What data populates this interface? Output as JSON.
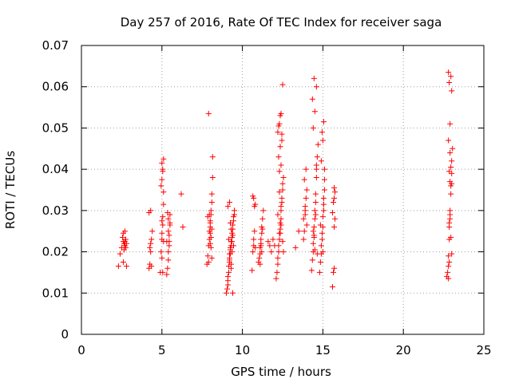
{
  "chart_data": {
    "type": "scatter",
    "title": "Day 257 of 2016, Rate Of TEC Index for receiver saga",
    "xlabel": "GPS time / hours",
    "ylabel": "ROTI / TECUs",
    "xlim": [
      0,
      25
    ],
    "ylim": [
      0,
      0.07
    ],
    "xticks": [
      0,
      5,
      10,
      15,
      20,
      25
    ],
    "xtick_labels": [
      "0",
      "5",
      "10",
      "15",
      "20",
      "25"
    ],
    "yticks": [
      0,
      0.01,
      0.02,
      0.03,
      0.04,
      0.05,
      0.06,
      0.07
    ],
    "ytick_labels": [
      "0",
      "0.01",
      "0.02",
      "0.03",
      "0.04",
      "0.05",
      "0.06",
      "0.07"
    ],
    "grid": true,
    "marker": "plus",
    "color": "#ff0000",
    "series": [
      {
        "name": "ROTI",
        "x": [
          2.3,
          2.4,
          2.5,
          2.55,
          2.6,
          2.6,
          2.65,
          2.65,
          2.7,
          2.7,
          2.75,
          2.75,
          2.8,
          2.8,
          2.6,
          2.7,
          4.2,
          4.25,
          4.3,
          4.3,
          4.35,
          4.4,
          4.3,
          4.2,
          4.35,
          4.25,
          4.9,
          4.95,
          5.0,
          5.0,
          5.05,
          5.05,
          5.1,
          5.1,
          5.0,
          5.05,
          5.0,
          5.1,
          4.95,
          5.05,
          5.0,
          5.1,
          5.05,
          5.0,
          5.3,
          5.35,
          5.4,
          5.4,
          5.45,
          5.45,
          5.5,
          5.5,
          5.35,
          5.4,
          5.45,
          5.5,
          5.3,
          5.4,
          6.2,
          6.3,
          7.8,
          7.85,
          7.9,
          7.95,
          7.95,
          8.0,
          8.0,
          8.05,
          8.05,
          8.1,
          8.1,
          8.15,
          8.15,
          7.9,
          8.0,
          8.1,
          8.05,
          7.85,
          8.0,
          7.95,
          8.1,
          8.0,
          7.9,
          8.05,
          9.0,
          9.05,
          9.1,
          9.1,
          9.15,
          9.15,
          9.2,
          9.2,
          9.25,
          9.25,
          9.3,
          9.3,
          9.35,
          9.35,
          9.4,
          9.4,
          9.45,
          9.45,
          9.5,
          9.5,
          9.1,
          9.2,
          9.3,
          9.4,
          9.15,
          9.25,
          9.35,
          9.2,
          9.3,
          9.1,
          9.4,
          9.25,
          9.35,
          9.45,
          9.2,
          9.3,
          10.6,
          10.65,
          10.7,
          10.7,
          10.75,
          10.75,
          10.8,
          10.7,
          10.65,
          10.8,
          11.0,
          11.05,
          11.1,
          11.1,
          11.15,
          11.15,
          11.2,
          11.2,
          11.25,
          11.3,
          11.1,
          11.2,
          11.15,
          11.25,
          11.6,
          11.7,
          11.8,
          11.9,
          12.0,
          12.1,
          12.15,
          12.2,
          12.2,
          12.25,
          12.25,
          12.3,
          12.3,
          12.35,
          12.35,
          12.4,
          12.4,
          12.45,
          12.45,
          12.5,
          12.5,
          12.55,
          12.3,
          12.4,
          12.25,
          12.35,
          12.45,
          12.2,
          12.3,
          12.4,
          12.5,
          12.35,
          12.25,
          12.45,
          12.3,
          12.4,
          12.5,
          12.55,
          12.35,
          12.2,
          12.4,
          13.3,
          13.5,
          13.8,
          13.85,
          13.9,
          13.9,
          13.95,
          14.0,
          13.85,
          13.95,
          13.9,
          13.8,
          14.0,
          14.3,
          14.35,
          14.4,
          14.4,
          14.45,
          14.45,
          14.5,
          14.5,
          14.55,
          14.55,
          14.6,
          14.6,
          14.65,
          14.7,
          14.4,
          14.5,
          14.35,
          14.6,
          14.45,
          14.55,
          14.4,
          14.5,
          14.65,
          14.6,
          14.45,
          14.8,
          14.85,
          14.9,
          14.9,
          14.95,
          14.95,
          15.0,
          15.0,
          15.05,
          15.05,
          15.1,
          15.1,
          14.9,
          15.0,
          15.05,
          14.95,
          15.1,
          15.0,
          14.85,
          15.05,
          15.6,
          15.65,
          15.7,
          15.7,
          15.75,
          15.6,
          15.65,
          15.7,
          15.75,
          15.7,
          22.7,
          22.75,
          22.8,
          22.8,
          22.85,
          22.85,
          22.9,
          22.9,
          22.95,
          22.95,
          23.0,
          23.0,
          23.05,
          22.8,
          22.9,
          23.0,
          22.85,
          22.95,
          22.8,
          22.9,
          22.85,
          23.0,
          22.95,
          22.9,
          22.8,
          22.85,
          22.95,
          23.0,
          22.9,
          22.85
        ],
        "y": [
          0.0165,
          0.0195,
          0.021,
          0.0235,
          0.0245,
          0.0225,
          0.022,
          0.0205,
          0.0215,
          0.0225,
          0.023,
          0.021,
          0.022,
          0.0165,
          0.0175,
          0.025,
          0.016,
          0.017,
          0.02,
          0.022,
          0.023,
          0.025,
          0.03,
          0.0295,
          0.0165,
          0.021,
          0.015,
          0.02,
          0.023,
          0.0245,
          0.0265,
          0.0285,
          0.0315,
          0.0345,
          0.0375,
          0.04,
          0.0415,
          0.0425,
          0.036,
          0.0395,
          0.0185,
          0.0225,
          0.015,
          0.0275,
          0.0145,
          0.016,
          0.018,
          0.02,
          0.0225,
          0.024,
          0.027,
          0.029,
          0.0295,
          0.025,
          0.0215,
          0.0265,
          0.0225,
          0.028,
          0.034,
          0.026,
          0.017,
          0.019,
          0.0215,
          0.023,
          0.025,
          0.026,
          0.0275,
          0.029,
          0.03,
          0.032,
          0.034,
          0.038,
          0.043,
          0.0535,
          0.0245,
          0.0185,
          0.021,
          0.0285,
          0.027,
          0.029,
          0.0255,
          0.022,
          0.0175,
          0.0235,
          0.01,
          0.011,
          0.012,
          0.014,
          0.015,
          0.0165,
          0.0175,
          0.0185,
          0.0195,
          0.0205,
          0.0215,
          0.0225,
          0.0235,
          0.0245,
          0.0255,
          0.0265,
          0.0275,
          0.0285,
          0.029,
          0.03,
          0.031,
          0.032,
          0.0255,
          0.024,
          0.023,
          0.021,
          0.02,
          0.018,
          0.016,
          0.013,
          0.01,
          0.027,
          0.0225,
          0.0215,
          0.0195,
          0.017,
          0.0155,
          0.02,
          0.0215,
          0.023,
          0.025,
          0.031,
          0.0315,
          0.033,
          0.0335,
          0.021,
          0.0175,
          0.0185,
          0.0195,
          0.021,
          0.022,
          0.023,
          0.0245,
          0.026,
          0.028,
          0.03,
          0.017,
          0.02,
          0.0215,
          0.0255,
          0.0225,
          0.0215,
          0.02,
          0.023,
          0.0215,
          0.0135,
          0.015,
          0.017,
          0.0185,
          0.02,
          0.0215,
          0.023,
          0.0245,
          0.0255,
          0.027,
          0.028,
          0.03,
          0.032,
          0.033,
          0.035,
          0.0365,
          0.038,
          0.0395,
          0.041,
          0.043,
          0.0455,
          0.047,
          0.049,
          0.051,
          0.0535,
          0.0605,
          0.053,
          0.0505,
          0.0485,
          0.0345,
          0.0265,
          0.0225,
          0.02,
          0.0245,
          0.029,
          0.031,
          0.021,
          0.025,
          0.023,
          0.025,
          0.029,
          0.03,
          0.033,
          0.035,
          0.0375,
          0.04,
          0.031,
          0.028,
          0.0265,
          0.0155,
          0.018,
          0.02,
          0.022,
          0.024,
          0.026,
          0.028,
          0.03,
          0.032,
          0.034,
          0.038,
          0.04,
          0.043,
          0.046,
          0.05,
          0.054,
          0.057,
          0.06,
          0.062,
          0.029,
          0.025,
          0.0205,
          0.0195,
          0.041,
          0.0235,
          0.015,
          0.0175,
          0.0195,
          0.0215,
          0.023,
          0.0245,
          0.026,
          0.0285,
          0.03,
          0.033,
          0.035,
          0.04,
          0.042,
          0.047,
          0.0515,
          0.049,
          0.0375,
          0.02,
          0.0265,
          0.0315,
          0.0115,
          0.015,
          0.016,
          0.026,
          0.028,
          0.0295,
          0.032,
          0.033,
          0.0345,
          0.0355,
          0.014,
          0.015,
          0.0165,
          0.019,
          0.023,
          0.026,
          0.028,
          0.03,
          0.034,
          0.036,
          0.039,
          0.042,
          0.045,
          0.047,
          0.051,
          0.059,
          0.061,
          0.0625,
          0.0635,
          0.029,
          0.027,
          0.0365,
          0.0405,
          0.044,
          0.0135,
          0.0175,
          0.0235,
          0.0195,
          0.037,
          0.0395
        ]
      }
    ]
  }
}
